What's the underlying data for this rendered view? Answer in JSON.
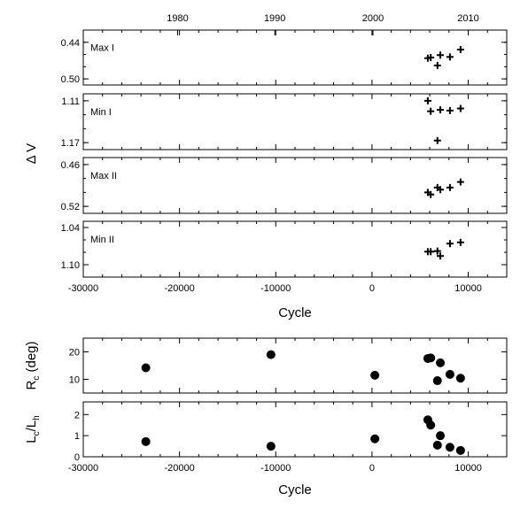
{
  "chart_data": [
    {
      "type": "scatter",
      "marker": "plus",
      "ylabel": "Δ V",
      "xlabel": "Cycle",
      "xlim": [
        -30000,
        14000
      ],
      "x_ticks": [
        "-30000",
        "-20000",
        "-10000",
        "0",
        "10000"
      ],
      "top_axis_ticks": [
        "1980",
        "1990",
        "2000",
        "2010"
      ],
      "top_axis_tick_cycles": [
        -20200,
        -10100,
        100,
        10000
      ],
      "panels": [
        {
          "label": "Max I",
          "ylim": [
            0.51,
            0.42
          ],
          "y_ticks": [
            "0.44",
            "0.50"
          ],
          "x": [
            5800,
            6100,
            6800,
            7100,
            8100,
            9200
          ],
          "y": [
            0.466,
            0.465,
            0.478,
            0.461,
            0.464,
            0.452
          ]
        },
        {
          "label": "Min I",
          "ylim": [
            1.18,
            1.1
          ],
          "y_ticks": [
            "1.11",
            "1.17"
          ],
          "x": [
            5800,
            6100,
            6800,
            7100,
            8100,
            9200
          ],
          "y": [
            1.11,
            1.125,
            1.167,
            1.123,
            1.124,
            1.121
          ]
        },
        {
          "label": "Max II",
          "ylim": [
            0.53,
            0.45
          ],
          "y_ticks": [
            "0.46",
            "0.52"
          ],
          "x": [
            5800,
            6100,
            6800,
            7100,
            8100,
            9200
          ],
          "y": [
            0.5,
            0.503,
            0.493,
            0.496,
            0.493,
            0.485
          ]
        },
        {
          "label": "Min II",
          "ylim": [
            1.12,
            1.03
          ],
          "y_ticks": [
            "1.04",
            "1.10"
          ],
          "x": [
            5800,
            6100,
            6800,
            7100,
            8100,
            9200
          ],
          "y": [
            1.079,
            1.079,
            1.078,
            1.086,
            1.066,
            1.064
          ]
        }
      ]
    },
    {
      "type": "scatter",
      "marker": "filled-circle",
      "xlabel": "Cycle",
      "xlim": [
        -30000,
        14000
      ],
      "x_ticks": [
        "-30000",
        "-20000",
        "-10000",
        "0",
        "10000"
      ],
      "panels": [
        {
          "ylabel": "Rc (deg)",
          "ylabel_main": "R",
          "ylabel_sub": "c",
          "ylabel_rest": " (deg)",
          "ylim": [
            5,
            25
          ],
          "y_ticks": [
            "10",
            "20"
          ],
          "x": [
            -23500,
            -10500,
            300,
            5800,
            6100,
            6800,
            7100,
            8100,
            9200
          ],
          "y": [
            14.2,
            19,
            11.5,
            17.6,
            17.8,
            9.5,
            16,
            11.8,
            10.4
          ]
        },
        {
          "ylabel": "Lc/Lh",
          "ylabel_main": "L",
          "ylabel_sub": "c",
          "ylabel_mid": "/L",
          "ylabel_sub2": "h",
          "ylim": [
            0,
            2.6
          ],
          "y_ticks": [
            "0",
            "1",
            "2"
          ],
          "x": [
            -23500,
            -10500,
            300,
            5800,
            6100,
            6800,
            7100,
            8100,
            9200
          ],
          "y": [
            0.72,
            0.5,
            0.85,
            1.75,
            1.5,
            0.55,
            1.0,
            0.45,
            0.3
          ]
        }
      ]
    }
  ]
}
